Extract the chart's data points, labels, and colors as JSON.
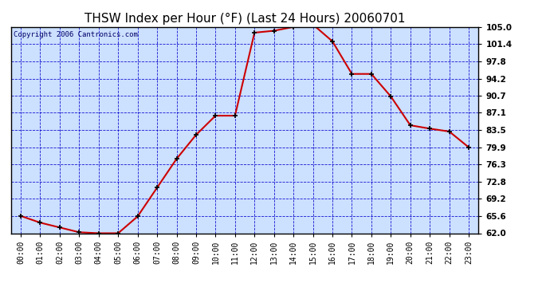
{
  "title": "THSW Index per Hour (°F) (Last 24 Hours) 20060701",
  "copyright": "Copyright 2006 Cantronics.com",
  "x_labels": [
    "00:00",
    "01:00",
    "02:00",
    "03:00",
    "04:00",
    "05:00",
    "06:00",
    "07:00",
    "08:00",
    "09:00",
    "10:00",
    "11:00",
    "12:00",
    "13:00",
    "14:00",
    "15:00",
    "16:00",
    "17:00",
    "18:00",
    "19:00",
    "20:00",
    "21:00",
    "22:00",
    "23:00"
  ],
  "y_values": [
    65.6,
    64.2,
    63.2,
    62.2,
    62.0,
    62.0,
    65.5,
    71.5,
    77.5,
    82.5,
    86.5,
    86.5,
    103.8,
    104.2,
    105.0,
    105.5,
    102.0,
    95.2,
    95.2,
    90.5,
    84.5,
    83.8,
    83.2,
    79.9
  ],
  "line_color": "#cc0000",
  "marker_color": "#000000",
  "bg_color": "#ffffff",
  "plot_bg_color": "#cce0ff",
  "grid_color": "#0000cc",
  "axis_color": "#000000",
  "title_color": "#000000",
  "yticks": [
    62.0,
    65.6,
    69.2,
    72.8,
    76.3,
    79.9,
    83.5,
    87.1,
    90.7,
    94.2,
    97.8,
    101.4,
    105.0
  ],
  "ylim": [
    62.0,
    105.0
  ],
  "title_fontsize": 11,
  "copyright_fontsize": 6.5,
  "tick_fontsize": 7.5,
  "xlabel_fontsize": 7
}
